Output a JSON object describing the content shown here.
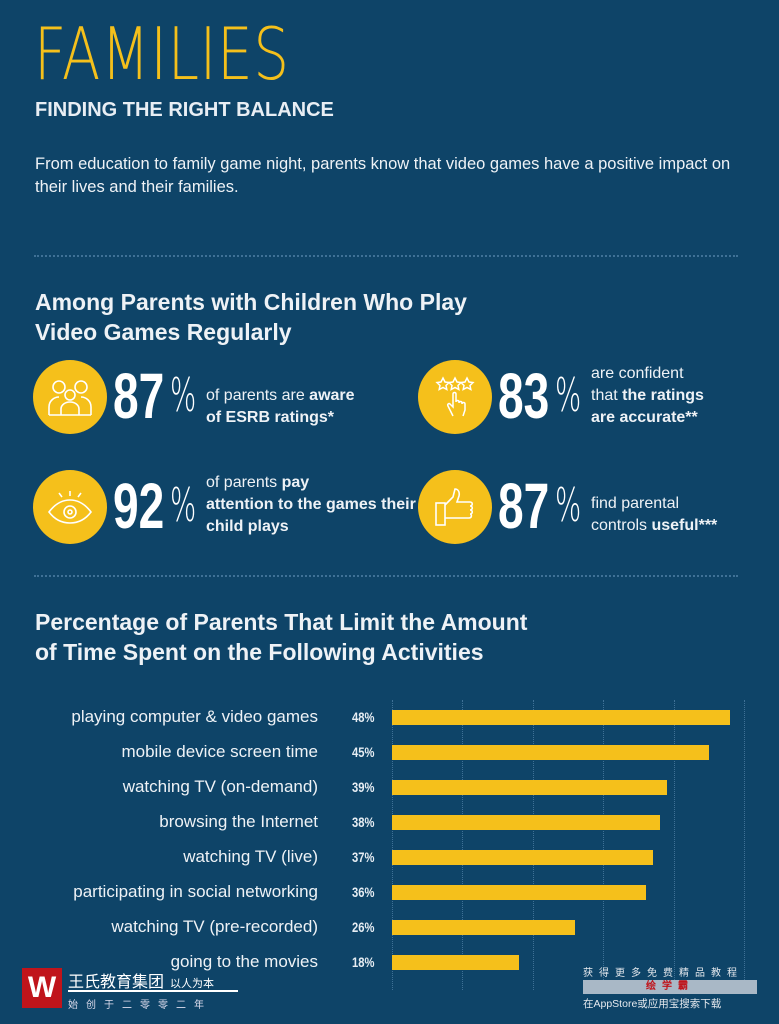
{
  "header": {
    "title": "FAMILIES",
    "subtitle": "FINDING THE RIGHT BALANCE",
    "intro": "From education to family game night, parents know that video games have a positive impact on their lives and their families."
  },
  "stats_section": {
    "title_line1": "Among Parents with Children Who Play",
    "title_line2": "Video Games Regularly",
    "stats": [
      {
        "icon": "family-icon",
        "number": "87",
        "percent_sign": "%",
        "text_plain1": "of parents are ",
        "text_bold1": "aware",
        "text_plain2": "",
        "text_bold2": "of ESRB ratings*"
      },
      {
        "icon": "star-rating-hand-icon",
        "number": "83",
        "percent_sign": "%",
        "text_plain1": "are confident",
        "text_plain2": "that ",
        "text_bold1": "the ratings",
        "text_bold2": "are accurate**"
      },
      {
        "icon": "eye-icon",
        "number": "92",
        "percent_sign": "%",
        "text_plain1": "of parents ",
        "text_bold1": "pay",
        "text_bold2": "attention to the games their child plays"
      },
      {
        "icon": "thumbs-up-icon",
        "number": "87",
        "percent_sign": "%",
        "text_plain1": "find parental",
        "text_plain2": "controls ",
        "text_bold1": "useful***"
      }
    ]
  },
  "chart_data": {
    "type": "bar",
    "orientation": "horizontal",
    "title": "Percentage of Parents That Limit the Amount of Time Spent on the Following Activities",
    "title_line1": "Percentage of Parents That Limit the Amount",
    "title_line2": "of Time Spent on the Following Activities",
    "categories": [
      "playing computer & video games",
      "mobile device screen time",
      "watching TV (on-demand)",
      "browsing the Internet",
      "watching TV (live)",
      "participating in social networking",
      "watching TV (pre-recorded)",
      "going to the movies"
    ],
    "values": [
      48,
      45,
      39,
      38,
      37,
      36,
      26,
      18
    ],
    "labels": [
      "48%",
      "45%",
      "39%",
      "38%",
      "37%",
      "36%",
      "26%",
      "18%"
    ],
    "xlim": [
      0,
      50
    ],
    "grid": true,
    "color": "#f5c01b"
  },
  "watermark": {
    "logo_text": "W",
    "org": "王氏教育集团",
    "motto": "以人为本",
    "founded": "始创于二零零二年",
    "promo1": "获得更多免费精品教程",
    "promo2": "绘学霸",
    "promo3": "在AppStore或应用宝搜索下载"
  },
  "colors": {
    "background": "#0e4468",
    "accent": "#f5c01b"
  }
}
